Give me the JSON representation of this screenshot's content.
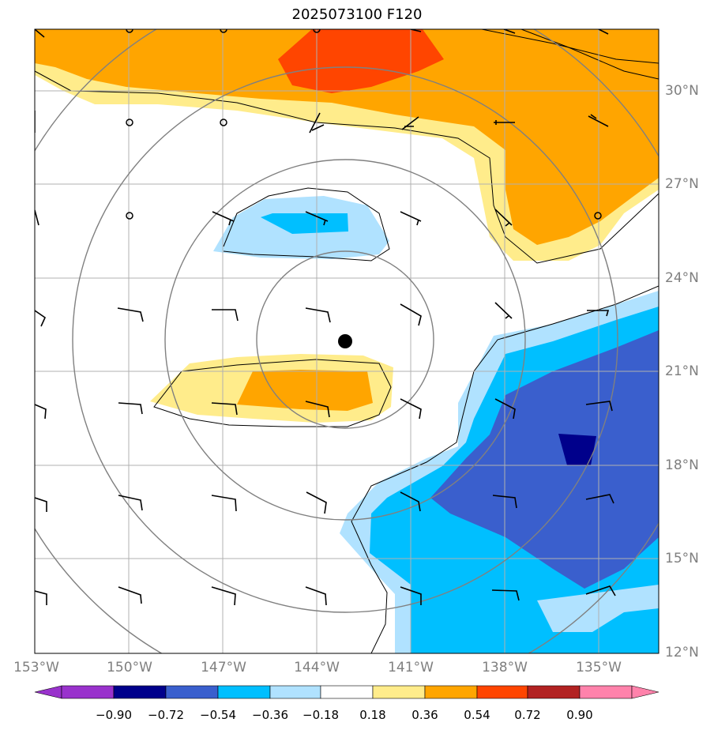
{
  "title": "2025073100 F120",
  "colors": {
    "ocean": "#ffffff",
    "graticule": "#b0b0b0",
    "range_rings": "#808080",
    "contour": "#000000",
    "barb": "#000000",
    "axis_label": "#7f7f7f"
  },
  "axes": {
    "lon_labels": [
      "153°W",
      "150°W",
      "147°W",
      "144°W",
      "141°W",
      "138°W",
      "135°W"
    ],
    "lat_labels": [
      "30°N",
      "27°N",
      "24°N",
      "21°N",
      "18°N",
      "15°N",
      "12°N"
    ],
    "lon_range": [
      -153,
      -133
    ],
    "lat_range": [
      12,
      32
    ]
  },
  "center_marker": {
    "lon": -142.1,
    "lat": 21.9
  },
  "colorbar": {
    "labels": [
      "−0.90",
      "−0.72",
      "−0.54",
      "−0.36",
      "−0.18",
      "0.18",
      "0.36",
      "0.54",
      "0.72",
      "0.90"
    ],
    "colors": [
      "#9932cc",
      "#00008b",
      "#3a5fcd",
      "#00bfff",
      "#b0e2ff",
      "#ffffff",
      "#ffec8b",
      "#ffa500",
      "#ff4500",
      "#b22222",
      "#ff82ab"
    ]
  },
  "range_rings_km": "concentric rings around center",
  "wind_barbs": "calm circles north, barbs south"
}
